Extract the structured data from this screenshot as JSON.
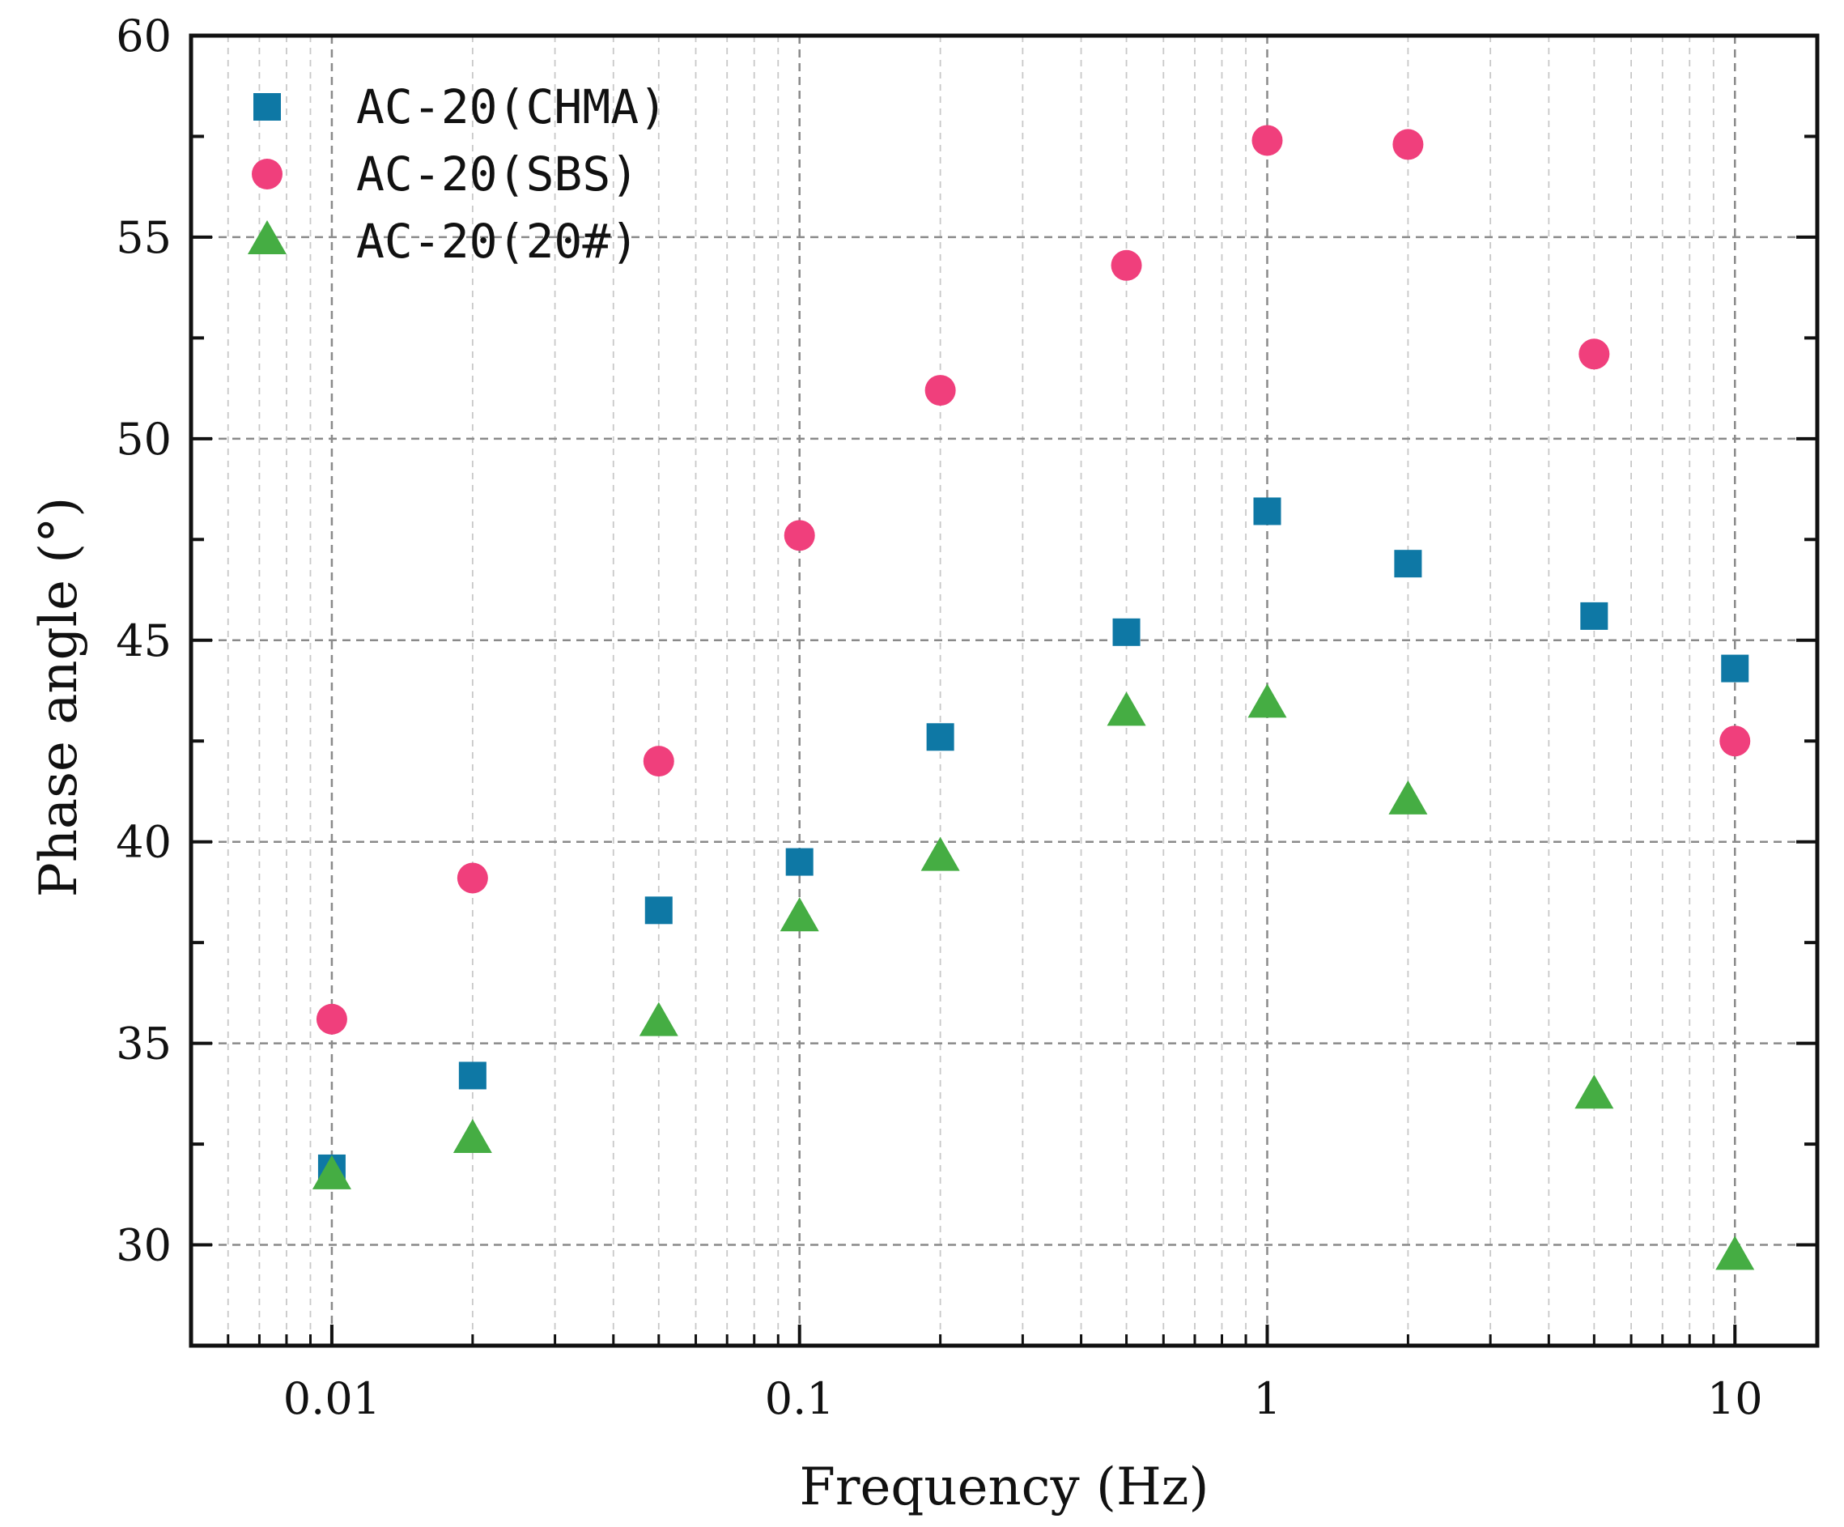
{
  "chart_data": {
    "type": "scatter",
    "xscale": "log",
    "xlabel": "Frequency (Hz)",
    "ylabel": "Phase angle (°)",
    "xlim": [
      0.005,
      15
    ],
    "ylim": [
      27.5,
      60
    ],
    "xticks": [
      0.01,
      0.1,
      1,
      10
    ],
    "xtick_labels": [
      "0.01",
      "0.1",
      "1",
      "10"
    ],
    "yticks": [
      30,
      35,
      40,
      45,
      50,
      55,
      60
    ],
    "ytick_labels": [
      "30",
      "35",
      "40",
      "45",
      "50",
      "55",
      "60"
    ],
    "grid": true,
    "legend_position": "top-left",
    "x": [
      0.01,
      0.02,
      0.05,
      0.1,
      0.2,
      0.5,
      1,
      2,
      5,
      10
    ],
    "series": [
      {
        "name": "AC-20(CHMA)",
        "marker": "square",
        "color": "#0e78a5",
        "values": [
          31.9,
          34.2,
          38.3,
          39.5,
          42.6,
          45.2,
          48.2,
          46.9,
          45.6,
          44.3
        ]
      },
      {
        "name": "AC-20(SBS)",
        "marker": "circle",
        "color": "#f03f7c",
        "values": [
          35.6,
          39.1,
          42.0,
          47.6,
          51.2,
          54.3,
          57.4,
          57.3,
          52.1,
          42.5
        ]
      },
      {
        "name": "AC-20(20#)",
        "marker": "triangle",
        "color": "#45ad43",
        "values": [
          31.7,
          32.6,
          35.5,
          38.1,
          39.6,
          43.2,
          43.4,
          41.0,
          33.7,
          29.7
        ]
      }
    ]
  }
}
